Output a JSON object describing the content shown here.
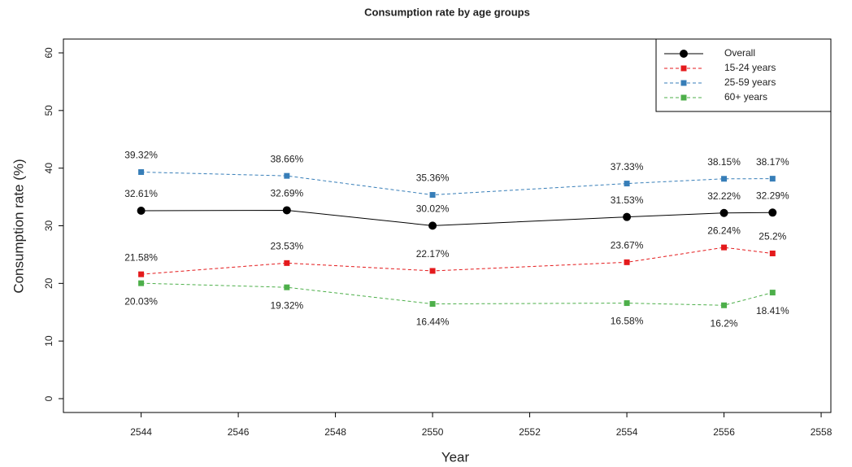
{
  "chart_data": {
    "type": "line",
    "title": "Consumption rate by age groups",
    "xlabel": "Year",
    "ylabel": "Consumption rate (%)",
    "x": [
      2544,
      2547,
      2550,
      2554,
      2556,
      2557
    ],
    "xlim": [
      2542.4,
      2558.2
    ],
    "xticks": [
      2544,
      2546,
      2548,
      2550,
      2552,
      2554,
      2556,
      2558
    ],
    "ylim": [
      -2.4,
      62.4
    ],
    "yticks": [
      0,
      10,
      20,
      30,
      40,
      50,
      60
    ],
    "grid": false,
    "legend": "top-right",
    "series": [
      {
        "name": "Overall",
        "color": "#000000",
        "marker": "circle",
        "dashed": false,
        "label_side": "above",
        "values": [
          32.61,
          32.69,
          30.02,
          31.53,
          32.22,
          32.29
        ],
        "value_labels": [
          "32.61%",
          "32.69%",
          "30.02%",
          "31.53%",
          "32.22%",
          "32.29%"
        ]
      },
      {
        "name": "15-24 years",
        "color": "#e41a1c",
        "marker": "square",
        "dashed": true,
        "label_side": "above",
        "values": [
          21.58,
          23.53,
          22.17,
          23.67,
          26.24,
          25.2
        ],
        "value_labels": [
          "21.58%",
          "23.53%",
          "22.17%",
          "23.67%",
          "26.24%",
          "25.2%"
        ]
      },
      {
        "name": "25-59 years",
        "color": "#377eb8",
        "marker": "square",
        "dashed": true,
        "label_side": "above",
        "values": [
          39.32,
          38.66,
          35.36,
          37.33,
          38.15,
          38.17
        ],
        "value_labels": [
          "39.32%",
          "38.66%",
          "35.36%",
          "37.33%",
          "38.15%",
          "38.17%"
        ]
      },
      {
        "name": "60+ years",
        "color": "#4daf4a",
        "marker": "square",
        "dashed": true,
        "label_side": "below",
        "values": [
          20.03,
          19.32,
          16.44,
          16.58,
          16.2,
          18.41
        ],
        "value_labels": [
          "20.03%",
          "19.32%",
          "16.44%",
          "16.58%",
          "16.2%",
          "18.41%"
        ]
      }
    ]
  }
}
